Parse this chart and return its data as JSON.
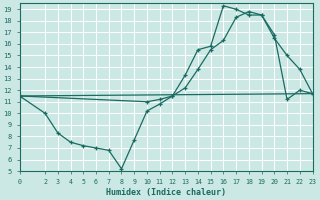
{
  "bg_color": "#cce8e4",
  "grid_color": "#b0d8d2",
  "line_color": "#1a6b62",
  "xlabel": "Humidex (Indice chaleur)",
  "xlim": [
    0,
    23
  ],
  "ylim": [
    5,
    19.5
  ],
  "xticks": [
    0,
    2,
    3,
    4,
    5,
    6,
    7,
    8,
    9,
    10,
    11,
    12,
    13,
    14,
    15,
    16,
    17,
    18,
    19,
    20,
    21,
    22,
    23
  ],
  "yticks": [
    5,
    6,
    7,
    8,
    9,
    10,
    11,
    12,
    13,
    14,
    15,
    16,
    17,
    18,
    19
  ],
  "line1_x": [
    0,
    2,
    3,
    4,
    5,
    6,
    7,
    8,
    9,
    10,
    11,
    12,
    13,
    14,
    15,
    16,
    17,
    18,
    19,
    20,
    21,
    22,
    23
  ],
  "line1_y": [
    11.5,
    10.0,
    8.3,
    7.5,
    7.2,
    7.0,
    6.8,
    5.2,
    7.7,
    10.2,
    10.8,
    11.5,
    13.3,
    15.5,
    15.8,
    19.3,
    19.0,
    18.5,
    18.5,
    16.5,
    15.0,
    13.8,
    11.7
  ],
  "line2_x": [
    0,
    10,
    11,
    12,
    13,
    14,
    15,
    16,
    17,
    18,
    19,
    20,
    21,
    22,
    23
  ],
  "line2_y": [
    11.5,
    11.0,
    11.2,
    11.5,
    12.2,
    13.8,
    15.5,
    16.3,
    18.3,
    18.8,
    18.5,
    16.8,
    11.2,
    12.0,
    11.7
  ],
  "line3_x": [
    0,
    23
  ],
  "line3_y": [
    11.5,
    11.7
  ]
}
